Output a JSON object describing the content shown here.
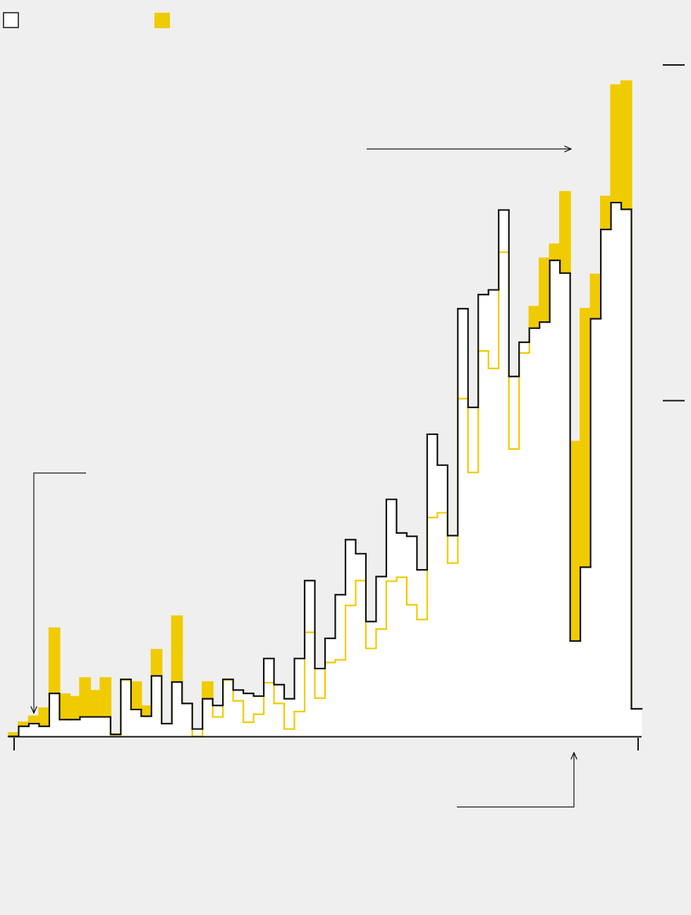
{
  "chart_data": {
    "type": "step",
    "categories": [
      null,
      null,
      null,
      null,
      null,
      null,
      null,
      null,
      null,
      null,
      null,
      null,
      null,
      null,
      null,
      null,
      null,
      null,
      null,
      null,
      null,
      null,
      null,
      null,
      null,
      null,
      null,
      null,
      null,
      null,
      null,
      null,
      null,
      null,
      null,
      null,
      null,
      null,
      null,
      null,
      null,
      null,
      null,
      null,
      null,
      null,
      null,
      null,
      null,
      null,
      null,
      null,
      null,
      null,
      null,
      null,
      null,
      null,
      null,
      null,
      null,
      null
    ],
    "series": [
      {
        "color": "#111111",
        "values": [
          0,
          1.5,
          1.9,
          1.5,
          6.4,
          2.5,
          2.5,
          2.9,
          2.9,
          2.9,
          0.3,
          8.5,
          4.0,
          3.0,
          9.0,
          1.9,
          8.1,
          4.9,
          1.1,
          5.6,
          4.6,
          8.5,
          6.9,
          6.4,
          6.0,
          11.6,
          7.7,
          5.6,
          11.6,
          23.2,
          10.1,
          14.6,
          21.1,
          29.3,
          27.2,
          17.1,
          23.8,
          35.3,
          30.3,
          29.8,
          24.8,
          45.0,
          40.4,
          29.9,
          63.7,
          49.0,
          65.8,
          66.5,
          78.4,
          53.6,
          58.7,
          60.8,
          61.7,
          70.9,
          69.0,
          14.2,
          25.2,
          62.2,
          75.5,
          79.5,
          78.5,
          4.1
        ]
      },
      {
        "color": "#f0cb00",
        "values": [
          0.5,
          2.1,
          3.0,
          4.2,
          16.1,
          6.3,
          5.9,
          8.7,
          6.8,
          8.7,
          0.2,
          8.4,
          8.1,
          4.5,
          12.9,
          1.9,
          17.9,
          4.9,
          0,
          8.1,
          2.9,
          8.4,
          5.3,
          2.1,
          3.3,
          8.0,
          4.9,
          1.1,
          3.7,
          15.5,
          5.7,
          11.0,
          11.4,
          19.5,
          23.2,
          13.1,
          16.0,
          23.1,
          23.7,
          19.6,
          17.4,
          32.6,
          33.3,
          25.8,
          50.3,
          39.3,
          57.4,
          54.8,
          72.1,
          42.8,
          57.1,
          64.0,
          71.2,
          73.3,
          81.1,
          43.9,
          63.7,
          68.8,
          80.4,
          97.0,
          97.6,
          4.1
        ]
      }
    ],
    "ylim": [
      0,
      100
    ],
    "yticks": [
      50,
      100
    ]
  }
}
